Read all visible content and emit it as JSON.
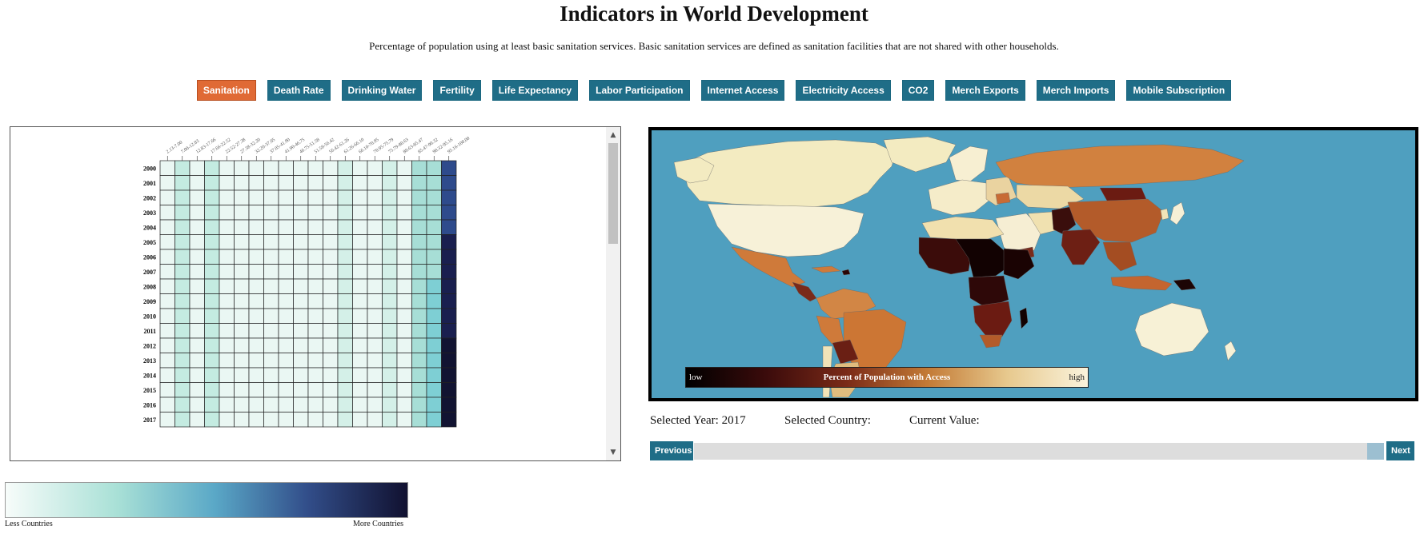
{
  "header": {
    "title": "Indicators in World Development",
    "description": "Percentage of population using at least basic sanitation services. Basic sanitation services are defined as sanitation facilities that are not shared with other households."
  },
  "nav": {
    "active_index": 0,
    "buttons": [
      "Sanitation",
      "Death Rate",
      "Drinking Water",
      "Fertility",
      "Life Expectancy",
      "Labor Participation",
      "Internet Access",
      "Electricity Access",
      "CO2",
      "Merch Exports",
      "Merch Imports",
      "Mobile Subscription"
    ]
  },
  "heatmap": {
    "bins": [
      "2.13-7.00",
      "7.00-12.83",
      "12.83-17.66",
      "17.66-22.52",
      "22.52-27.38",
      "27.38-32.20",
      "32.20-37.05",
      "37.05-41.90",
      "41.90-46.75",
      "46.75-51.58",
      "51.58-56.42",
      "56.42-61.26",
      "61.26-66.10",
      "66.10-70.95",
      "70.95-75.79",
      "75.79-80.63",
      "80.63-85.47",
      "85.47-90.32",
      "90.32-95.16",
      "95.16-100.00"
    ],
    "years": [
      "2000",
      "2001",
      "2002",
      "2003",
      "2004",
      "2005",
      "2006",
      "2007",
      "2008",
      "2009",
      "2010",
      "2011",
      "2012",
      "2013",
      "2014",
      "2015",
      "2016",
      "2017"
    ],
    "colors": {
      "c1": "#eaf7f3",
      "c2": "#d4f0e8",
      "c3": "#c4ebe1",
      "c4": "#a7ded6",
      "c5": "#7ecfd4",
      "deep1": "#2e4b8c",
      "deep2": "#1a1f4f",
      "deep3": "#121432"
    }
  },
  "legend": {
    "low_label": "Less Countries",
    "high_label": "More Countries"
  },
  "map": {
    "legend_low": "low",
    "legend_title": "Percent of Population with Access",
    "legend_high": "high",
    "ocean_color": "#4f9fbf"
  },
  "info": {
    "selected_year_label": "Selected Year:",
    "selected_year": "2017",
    "selected_country_label": "Selected Country:",
    "current_value_label": "Current Value:"
  },
  "controls": {
    "previous": "Previous",
    "next": "Next"
  }
}
